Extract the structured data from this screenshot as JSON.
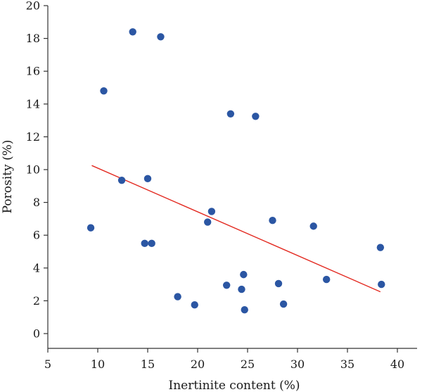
{
  "chart_data": {
    "type": "scatter",
    "xlabel": "Inertinite content (%)",
    "ylabel": "Porosity (%)",
    "xlim": [
      5,
      41
    ],
    "ylim": [
      -1,
      20
    ],
    "xticks": [
      5,
      10,
      15,
      20,
      25,
      30,
      35,
      40
    ],
    "yticks": [
      0,
      2,
      4,
      6,
      8,
      10,
      12,
      14,
      16,
      18,
      20
    ],
    "grid": false,
    "legend": "none",
    "point_color": "#2b56a3",
    "fit_color": "#e32b22",
    "points": [
      {
        "x": 9.3,
        "y": 6.45
      },
      {
        "x": 10.6,
        "y": 14.8
      },
      {
        "x": 12.4,
        "y": 9.35
      },
      {
        "x": 13.5,
        "y": 18.4
      },
      {
        "x": 14.7,
        "y": 5.5
      },
      {
        "x": 15.0,
        "y": 9.45
      },
      {
        "x": 15.4,
        "y": 5.5
      },
      {
        "x": 16.3,
        "y": 18.1
      },
      {
        "x": 18.0,
        "y": 2.25
      },
      {
        "x": 19.7,
        "y": 1.75
      },
      {
        "x": 21.0,
        "y": 6.8
      },
      {
        "x": 21.4,
        "y": 7.45
      },
      {
        "x": 22.9,
        "y": 2.95
      },
      {
        "x": 23.3,
        "y": 13.4
      },
      {
        "x": 24.4,
        "y": 2.7
      },
      {
        "x": 24.6,
        "y": 3.6
      },
      {
        "x": 24.7,
        "y": 1.45
      },
      {
        "x": 25.8,
        "y": 13.25
      },
      {
        "x": 27.5,
        "y": 6.9
      },
      {
        "x": 28.1,
        "y": 3.05
      },
      {
        "x": 28.6,
        "y": 1.8
      },
      {
        "x": 31.6,
        "y": 6.55
      },
      {
        "x": 32.9,
        "y": 3.3
      },
      {
        "x": 38.3,
        "y": 5.25
      },
      {
        "x": 38.4,
        "y": 3.0
      }
    ],
    "fit_line": {
      "x": [
        9.4,
        38.3
      ],
      "y": [
        10.25,
        2.55
      ]
    }
  }
}
